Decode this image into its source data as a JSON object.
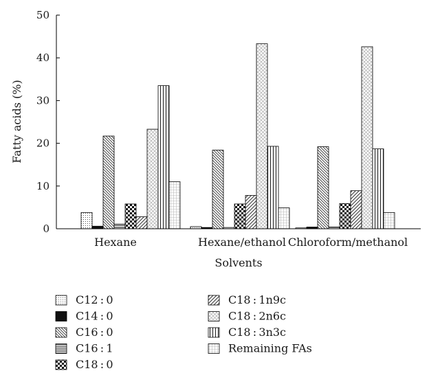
{
  "chart_data": {
    "type": "bar",
    "xlabel": "Solvents",
    "ylabel": "Fatty acids (%)",
    "ylim": [
      0,
      50
    ],
    "yticks": [
      "0",
      "10",
      "20",
      "30",
      "40",
      "50"
    ],
    "categories": [
      "Hexane",
      "Hexane/ethanol",
      "Chloroform/methanol"
    ],
    "series": [
      {
        "name": "C12 : 0",
        "pattern": "dots",
        "values": [
          3.8,
          0.5,
          0.2
        ]
      },
      {
        "name": "C14 : 0",
        "pattern": "solid",
        "values": [
          0.6,
          0.3,
          0.4
        ]
      },
      {
        "name": "C16 : 0",
        "pattern": "diag-down-dense",
        "values": [
          21.7,
          18.4,
          19.2
        ]
      },
      {
        "name": "C16 : 1",
        "pattern": "horizontal",
        "values": [
          1.1,
          0.3,
          0.4
        ]
      },
      {
        "name": "C18 : 0",
        "pattern": "checker",
        "values": [
          5.8,
          5.8,
          5.9
        ]
      },
      {
        "name": "C18 : 1n9c",
        "pattern": "diag-up",
        "values": [
          2.8,
          7.8,
          8.9
        ]
      },
      {
        "name": "C18 : 2n6c",
        "pattern": "crosshatch",
        "values": [
          23.3,
          43.3,
          42.6
        ]
      },
      {
        "name": "C18 : 3n3c",
        "pattern": "vertical",
        "values": [
          33.5,
          19.3,
          18.7
        ]
      },
      {
        "name": "Remaining FAs",
        "pattern": "grid",
        "values": [
          11.0,
          4.9,
          3.8
        ]
      }
    ],
    "legend_position": "bottom",
    "grid": false
  }
}
